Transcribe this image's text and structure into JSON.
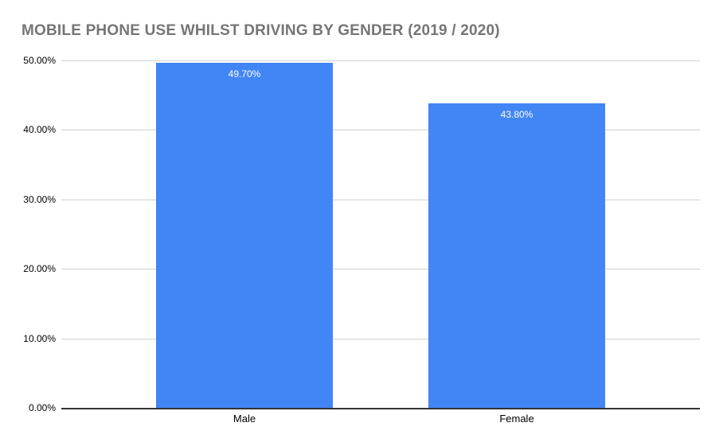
{
  "chart_data": {
    "type": "bar",
    "title": "MOBILE PHONE USE WHILST DRIVING BY GENDER (2019 / 2020)",
    "categories": [
      "Male",
      "Female"
    ],
    "values": [
      49.7,
      43.8
    ],
    "value_labels": [
      "49.70%",
      "43.80%"
    ],
    "xlabel": "",
    "ylabel": "",
    "ylim": [
      0,
      50
    ],
    "yticks": [
      {
        "value": 50,
        "label": "50.00%"
      },
      {
        "value": 40,
        "label": "40.00%"
      },
      {
        "value": 30,
        "label": "30.00%"
      },
      {
        "value": 20,
        "label": "20.00%"
      },
      {
        "value": 10,
        "label": "10.00%"
      },
      {
        "value": 0,
        "label": "0.00%"
      }
    ],
    "grid": true,
    "legend": "none",
    "colors": {
      "bar": "#4285f4",
      "value_label": "#ffffff",
      "title": "#757575",
      "gridline": "#d0d0d0",
      "axis_line": "#333333",
      "tick_label": "#000000",
      "background": "#ffffff"
    }
  }
}
